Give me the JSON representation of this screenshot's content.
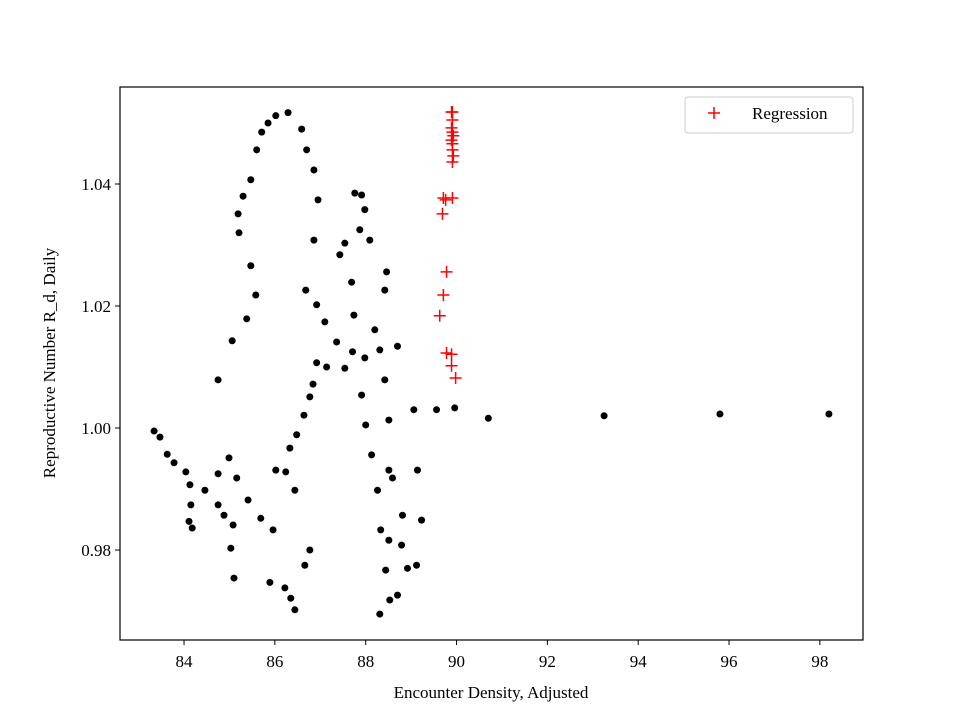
{
  "chart_data": {
    "type": "scatter",
    "xlabel": "Encounter Density, Adjusted",
    "ylabel": "Reproductive Number R_d, Daily",
    "xlim": [
      82.59,
      98.95
    ],
    "ylim": [
      0.96525,
      1.0559
    ],
    "xticks": [
      84,
      86,
      88,
      90,
      92,
      94,
      96,
      98
    ],
    "yticks": [
      0.98,
      {
        "value": 1,
        "label": "1.00"
      },
      1.02,
      1.04
    ],
    "legend": "upper right",
    "series": [
      {
        "color": "#000000",
        "marker": "circle",
        "x": [
          83.34,
          83.47,
          83.63,
          83.78,
          84.04,
          84.13,
          84.15,
          84.11,
          84.18,
          84.46,
          84.75,
          84.88,
          84.75,
          84.99,
          85.16,
          85.08,
          85.03,
          85.1,
          85.41,
          85.69,
          85.96,
          84.75,
          85.06,
          85.38,
          85.58,
          85.47,
          85.21,
          85.19,
          85.3,
          85.47,
          85.6,
          85.71,
          85.85,
          86.02,
          86.29,
          86.59,
          86.7,
          86.86,
          86.95,
          86.86,
          86.68,
          86.92,
          87.1,
          87.36,
          87.14,
          86.84,
          86.77,
          86.64,
          86.48,
          86.33,
          86.24,
          86.44,
          86.02,
          85.89,
          86.22,
          86.35,
          86.44,
          86.66,
          86.77,
          87.76,
          87.91,
          87.98,
          87.87,
          87.54,
          87.43,
          87.69,
          87.74,
          87.71,
          87.91,
          88.0,
          88.13,
          88.26,
          88.33,
          88.44,
          88.53,
          88.31,
          88.7,
          88.92,
          89.12,
          88.79,
          88.81,
          88.59,
          88.51,
          88.42,
          88.7,
          88.31,
          87.98,
          87.54,
          86.92,
          88.2,
          88.42,
          88.46,
          88.09,
          88.51,
          88.51,
          89.23,
          89.14,
          89.06,
          89.56,
          89.96,
          90.7,
          93.25,
          95.8,
          98.2
        ],
        "values": [
          0.9995,
          0.9985,
          0.9957,
          0.9943,
          0.9928,
          0.9907,
          0.9874,
          0.9847,
          0.9836,
          0.9898,
          0.9874,
          0.9857,
          0.9925,
          0.9951,
          0.9918,
          0.9841,
          0.9803,
          0.9754,
          0.9882,
          0.9852,
          0.9833,
          1.0079,
          1.0143,
          1.0179,
          1.0218,
          1.0266,
          1.032,
          1.0351,
          1.038,
          1.0407,
          1.0456,
          1.0485,
          1.05,
          1.0512,
          1.0517,
          1.049,
          1.0456,
          1.0423,
          1.0374,
          1.0308,
          1.0226,
          1.0202,
          1.0174,
          1.0141,
          1.01,
          1.0072,
          1.0051,
          1.0021,
          0.9989,
          0.9967,
          0.9928,
          0.9898,
          0.9931,
          0.9747,
          0.9738,
          0.9721,
          0.9702,
          0.9775,
          0.98,
          1.0385,
          1.0382,
          1.0358,
          1.0325,
          1.0303,
          1.0284,
          1.0239,
          1.0185,
          1.0125,
          1.0054,
          1.0005,
          0.9956,
          0.9898,
          0.9833,
          0.9767,
          0.9718,
          0.9695,
          0.9726,
          0.977,
          0.9775,
          0.9808,
          0.9857,
          0.9918,
          1.0013,
          1.0079,
          1.0134,
          1.0128,
          1.0115,
          1.0098,
          1.0107,
          1.0161,
          1.0226,
          1.0256,
          1.0308,
          0.9931,
          0.9816,
          0.9849,
          0.9931,
          1.003,
          1.003,
          1.0033,
          1.0016,
          1.002,
          1.0023,
          1.0023
        ]
      },
      {
        "name": "Regression",
        "color": "#ff0000",
        "marker": "plus",
        "x": [
          89.91,
          89.89,
          89.91,
          89.89,
          89.91,
          89.93,
          89.89,
          89.91,
          89.91,
          89.93,
          89.91,
          89.71,
          89.91,
          89.69,
          89.78,
          89.71,
          89.63,
          89.78,
          89.89,
          89.89,
          89.98,
          89.76
        ],
        "values": [
          1.0518,
          1.0518,
          1.0505,
          1.0492,
          1.0485,
          1.0479,
          1.0472,
          1.0466,
          1.0456,
          1.0446,
          1.0436,
          1.0377,
          1.0377,
          1.0351,
          1.0256,
          1.0218,
          1.0184,
          1.0123,
          1.0121,
          1.0102,
          1.0082,
          1.0374
        ]
      }
    ]
  }
}
